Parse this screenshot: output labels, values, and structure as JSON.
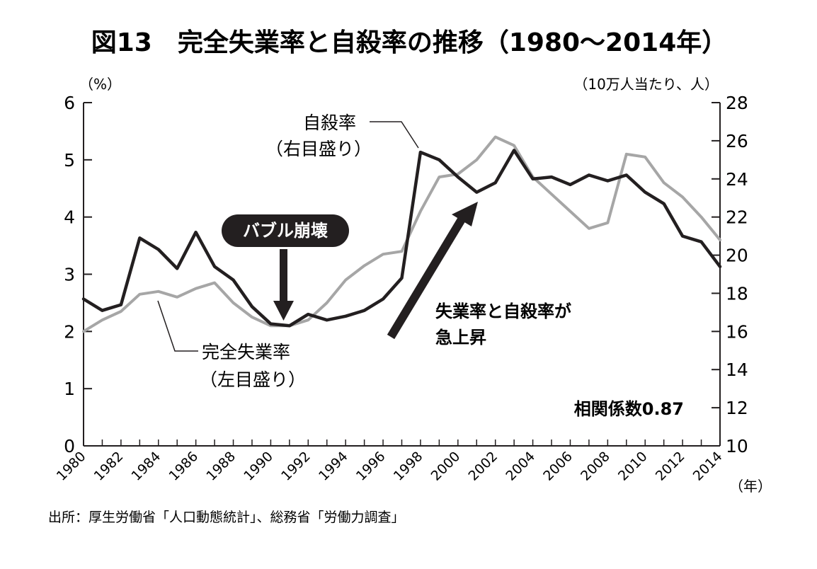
{
  "chart_data": {
    "type": "line",
    "title": "図13　完全失業率と自殺率の推移（1980〜2014年）",
    "y_left_unit": "（%）",
    "y_right_unit": "（10万人当たり、人）",
    "x_unit": "（年）",
    "y_left_range": [
      0,
      6
    ],
    "y_right_range": [
      10,
      28
    ],
    "y_left_ticks": [
      "0",
      "1",
      "2",
      "3",
      "4",
      "5",
      "6"
    ],
    "y_right_ticks": [
      "10",
      "12",
      "14",
      "16",
      "18",
      "20",
      "22",
      "24",
      "26",
      "28"
    ],
    "x_tick_labels": [
      "1980",
      "1982",
      "1984",
      "1986",
      "1988",
      "1990",
      "1992",
      "1994",
      "1996",
      "1998",
      "2000",
      "2002",
      "2004",
      "2006",
      "2008",
      "2010",
      "2012",
      "2014"
    ],
    "x": [
      1980,
      1981,
      1982,
      1983,
      1984,
      1985,
      1986,
      1987,
      1988,
      1989,
      1990,
      1991,
      1992,
      1993,
      1994,
      1995,
      1996,
      1997,
      1998,
      1999,
      2000,
      2001,
      2002,
      2003,
      2004,
      2005,
      2006,
      2007,
      2008,
      2009,
      2010,
      2011,
      2012,
      2013,
      2014
    ],
    "series": [
      {
        "name": "完全失業率",
        "axis": "left",
        "color": "#a6a6a6",
        "values": [
          2.0,
          2.2,
          2.35,
          2.65,
          2.7,
          2.6,
          2.75,
          2.85,
          2.5,
          2.25,
          2.1,
          2.1,
          2.2,
          2.5,
          2.9,
          3.15,
          3.35,
          3.4,
          4.1,
          4.7,
          4.75,
          5.0,
          5.4,
          5.25,
          4.7,
          4.4,
          4.1,
          3.8,
          3.9,
          5.1,
          5.05,
          4.6,
          4.35,
          4.0,
          3.6
        ]
      },
      {
        "name": "自殺率",
        "axis": "right",
        "color": "#231f20",
        "values": [
          17.7,
          17.1,
          17.4,
          20.9,
          20.3,
          19.3,
          21.2,
          19.4,
          18.7,
          17.3,
          16.4,
          16.3,
          16.9,
          16.6,
          16.8,
          17.1,
          17.7,
          18.8,
          25.4,
          25.0,
          24.1,
          23.3,
          23.8,
          25.5,
          24.0,
          24.1,
          23.7,
          24.2,
          23.9,
          24.2,
          23.3,
          22.7,
          21.0,
          20.7,
          19.4
        ]
      }
    ],
    "annotations": {
      "suicide_label": "自殺率",
      "suicide_sub": "（右目盛り）",
      "unemp_label": "完全失業率",
      "unemp_sub": "（左目盛り）",
      "bubble": "バブル崩壊",
      "rise_line1": "失業率と自殺率が",
      "rise_line2": "急上昇",
      "correlation": "相関係数0.87"
    },
    "source": "出所：厚生労働省「人口動態統計」、総務省「労働力調査」"
  }
}
